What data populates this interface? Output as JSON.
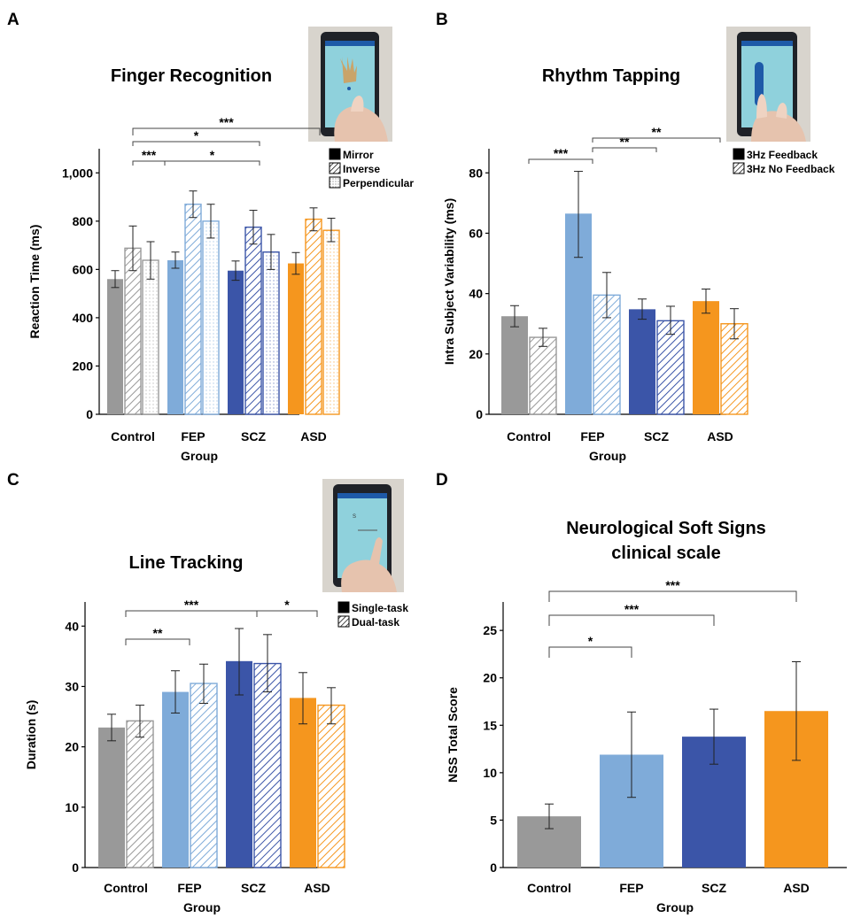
{
  "group_colors": {
    "Control": "#999999",
    "FEP": "#7fabd9",
    "SCZ": "#3b55a8",
    "ASD": "#f5961e"
  },
  "chart_data": [
    {
      "panel": "A",
      "type": "bar",
      "title": "Finger Recognition",
      "xlabel": "Group",
      "ylabel": "Reaction Time (ms)",
      "ylim": [
        0,
        1100
      ],
      "yticks": [
        0,
        200,
        400,
        600,
        800,
        1000
      ],
      "ytick_labels": [
        "0",
        "200",
        "400",
        "600",
        "800",
        "1,000"
      ],
      "categories": [
        "Control",
        "FEP",
        "SCZ",
        "ASD"
      ],
      "series": [
        {
          "name": "Mirror",
          "pattern": "solid",
          "values": [
            560,
            638,
            595,
            625
          ],
          "err_low": [
            525,
            605,
            555,
            580
          ],
          "err_high": [
            595,
            672,
            635,
            670
          ]
        },
        {
          "name": "Inverse",
          "pattern": "hatch",
          "values": [
            688,
            870,
            775,
            808
          ],
          "err_low": [
            595,
            815,
            705,
            760
          ],
          "err_high": [
            780,
            925,
            845,
            855
          ]
        },
        {
          "name": "Perpendicular",
          "pattern": "dots",
          "values": [
            638,
            800,
            672,
            762
          ],
          "err_low": [
            560,
            730,
            600,
            715
          ],
          "err_high": [
            715,
            870,
            745,
            812
          ]
        }
      ],
      "legend": {
        "placement": "top-right",
        "items": [
          "Mirror",
          "Inverse",
          "Perpendicular"
        ]
      },
      "significance": [
        {
          "from": "Control",
          "to": "ASD",
          "label": "***"
        },
        {
          "from": "Control",
          "to": "SCZ",
          "label": "*"
        },
        {
          "from": "Control",
          "to": "FEP",
          "label": "***"
        },
        {
          "from": "FEP",
          "to": "SCZ",
          "label": "*"
        }
      ],
      "inset": "tablet-hand-photo"
    },
    {
      "panel": "B",
      "type": "bar",
      "title": "Rhythm Tapping",
      "xlabel": "Group",
      "ylabel": "Intra Subject Variability (ms)",
      "ylim": [
        0,
        88
      ],
      "yticks": [
        0,
        20,
        40,
        60,
        80
      ],
      "ytick_labels": [
        "0",
        "20",
        "40",
        "60",
        "80"
      ],
      "categories": [
        "Control",
        "FEP",
        "SCZ",
        "ASD"
      ],
      "series": [
        {
          "name": "3Hz Feedback",
          "pattern": "solid",
          "values": [
            32.5,
            66.5,
            34.8,
            37.5
          ],
          "err_low": [
            29,
            52,
            31.5,
            33.5
          ],
          "err_high": [
            36,
            80.5,
            38.2,
            41.5
          ]
        },
        {
          "name": "3Hz No Feedback",
          "pattern": "hatch",
          "values": [
            25.5,
            39.5,
            31,
            30
          ],
          "err_low": [
            22.5,
            32,
            26.5,
            25
          ],
          "err_high": [
            28.5,
            47,
            35.8,
            35
          ]
        }
      ],
      "legend": {
        "placement": "top-right",
        "items": [
          "3Hz Feedback",
          "3Hz No Feedback"
        ]
      },
      "significance": [
        {
          "from": "Control",
          "to": "FEP",
          "label": "***"
        },
        {
          "from": "FEP",
          "to": "SCZ",
          "label": "**"
        },
        {
          "from": "FEP",
          "to": "ASD",
          "label": "**"
        }
      ],
      "inset": "tablet-tapping-photo"
    },
    {
      "panel": "C",
      "type": "bar",
      "title": "Line Tracking",
      "xlabel": "Group",
      "ylabel": "Duration (s)",
      "ylim": [
        0,
        44
      ],
      "yticks": [
        0,
        10,
        20,
        30,
        40
      ],
      "ytick_labels": [
        "0",
        "10",
        "20",
        "30",
        "40"
      ],
      "categories": [
        "Control",
        "FEP",
        "SCZ",
        "ASD"
      ],
      "series": [
        {
          "name": "Single-task",
          "pattern": "solid",
          "values": [
            23.2,
            29.1,
            34.2,
            28.1
          ],
          "err_low": [
            21,
            25.6,
            28.6,
            23.8
          ],
          "err_high": [
            25.4,
            32.6,
            39.6,
            32.3
          ]
        },
        {
          "name": "Dual-task",
          "pattern": "hatch",
          "values": [
            24.3,
            30.5,
            33.8,
            26.9
          ],
          "err_low": [
            21.6,
            27.2,
            29.1,
            23.8
          ],
          "err_high": [
            26.9,
            33.7,
            38.6,
            29.8
          ]
        }
      ],
      "legend": {
        "placement": "top-right",
        "items": [
          "Single-task",
          "Dual-task"
        ]
      },
      "significance": [
        {
          "from": "Control",
          "to": "SCZ",
          "label": "***"
        },
        {
          "from": "SCZ",
          "to": "ASD",
          "label": "*"
        },
        {
          "from": "Control",
          "to": "FEP",
          "label": "**"
        }
      ],
      "inset": "tablet-line-photo"
    },
    {
      "panel": "D",
      "type": "bar",
      "title": "Neurological Soft Signs clinical scale",
      "title_lines": [
        "Neurological Soft Signs",
        "clinical scale"
      ],
      "xlabel": "Group",
      "ylabel": "NSS Total Score",
      "ylim": [
        0,
        28
      ],
      "yticks": [
        0,
        5,
        10,
        15,
        20,
        25
      ],
      "ytick_labels": [
        "0",
        "5",
        "10",
        "15",
        "20",
        "25"
      ],
      "categories": [
        "Control",
        "FEP",
        "SCZ",
        "ASD"
      ],
      "series": [
        {
          "pattern": "solid",
          "values": [
            5.4,
            11.9,
            13.8,
            16.5
          ],
          "err_low": [
            4.1,
            7.4,
            10.9,
            11.3
          ],
          "err_high": [
            6.7,
            16.4,
            16.7,
            21.7
          ]
        }
      ],
      "significance": [
        {
          "from": "Control",
          "to": "ASD",
          "label": "***"
        },
        {
          "from": "Control",
          "to": "SCZ",
          "label": "***"
        },
        {
          "from": "Control",
          "to": "FEP",
          "label": "*"
        }
      ]
    }
  ]
}
